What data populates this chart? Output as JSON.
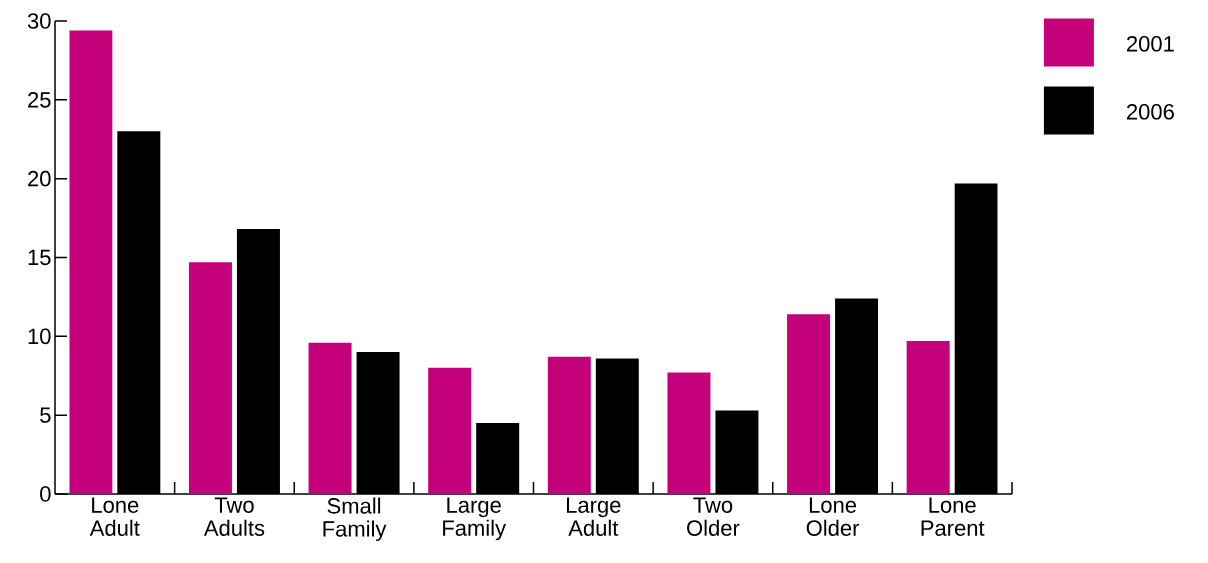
{
  "chart_data": {
    "type": "bar",
    "categories": [
      "Lone Adult",
      "Two Adults",
      "Small Family",
      "Large Family",
      "Large Adult",
      "Two Older",
      "Lone Older",
      "Lone Parent"
    ],
    "series": [
      {
        "name": "2001",
        "color": "#c4007a",
        "values": [
          29.4,
          14.7,
          9.6,
          8.0,
          8.7,
          7.7,
          11.4,
          9.7
        ]
      },
      {
        "name": "2006",
        "color": "#000000",
        "values": [
          23.0,
          16.8,
          9.0,
          4.5,
          8.6,
          5.3,
          12.4,
          19.7
        ]
      }
    ],
    "ylim": [
      0,
      30
    ],
    "yticks": [
      0,
      5,
      10,
      15,
      20,
      25,
      30
    ],
    "grid": false,
    "legend": "top right"
  }
}
